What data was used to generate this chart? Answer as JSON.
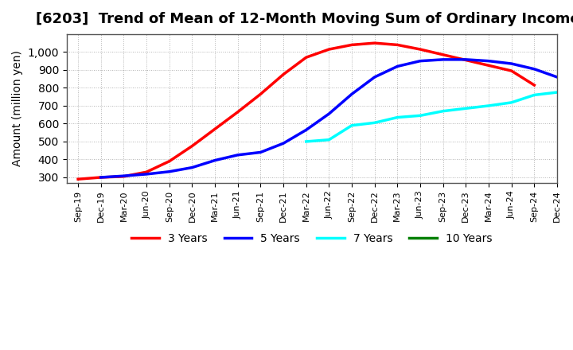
{
  "title": "[6203]  Trend of Mean of 12-Month Moving Sum of Ordinary Incomes",
  "ylabel": "Amount (million yen)",
  "background_color": "#ffffff",
  "grid_color": "#aaaaaa",
  "title_fontsize": 13,
  "tick_labels": [
    "Sep-19",
    "Dec-19",
    "Mar-20",
    "Jun-20",
    "Sep-20",
    "Dec-20",
    "Mar-21",
    "Jun-21",
    "Sep-21",
    "Dec-21",
    "Mar-22",
    "Jun-22",
    "Sep-22",
    "Dec-22",
    "Mar-23",
    "Jun-23",
    "Sep-23",
    "Dec-23",
    "Mar-24",
    "Jun-24",
    "Sep-24",
    "Dec-24"
  ],
  "series": {
    "3 Years": {
      "color": "#ff0000",
      "data_x": [
        0,
        1,
        2,
        3,
        4,
        5,
        6,
        7,
        8,
        9,
        10,
        11,
        12,
        13,
        14,
        15,
        16,
        17,
        18,
        19,
        20
      ],
      "data_y": [
        290,
        300,
        305,
        330,
        390,
        475,
        570,
        665,
        765,
        875,
        970,
        1015,
        1040,
        1050,
        1040,
        1015,
        985,
        955,
        925,
        895,
        815
      ]
    },
    "5 Years": {
      "color": "#0000ff",
      "data_x": [
        1,
        2,
        3,
        4,
        5,
        6,
        7,
        8,
        9,
        10,
        11,
        12,
        13,
        14,
        15,
        16,
        17,
        18,
        19,
        20,
        21
      ],
      "data_y": [
        300,
        308,
        318,
        332,
        355,
        395,
        425,
        440,
        490,
        565,
        655,
        765,
        860,
        920,
        950,
        958,
        958,
        950,
        935,
        905,
        860
      ]
    },
    "7 Years": {
      "color": "#00ffff",
      "data_x": [
        10,
        11,
        12,
        13,
        14,
        15,
        16,
        17,
        18,
        19,
        20,
        21
      ],
      "data_y": [
        500,
        510,
        590,
        605,
        635,
        645,
        670,
        685,
        700,
        718,
        760,
        775
      ]
    },
    "10 Years": {
      "color": "#008000",
      "data_x": [],
      "data_y": []
    }
  },
  "ylim": [
    270,
    1100
  ],
  "yticks": [
    300,
    400,
    500,
    600,
    700,
    800,
    900,
    1000
  ],
  "legend_entries": [
    "3 Years",
    "5 Years",
    "7 Years",
    "10 Years"
  ],
  "legend_colors": [
    "#ff0000",
    "#0000ff",
    "#00ffff",
    "#008000"
  ]
}
